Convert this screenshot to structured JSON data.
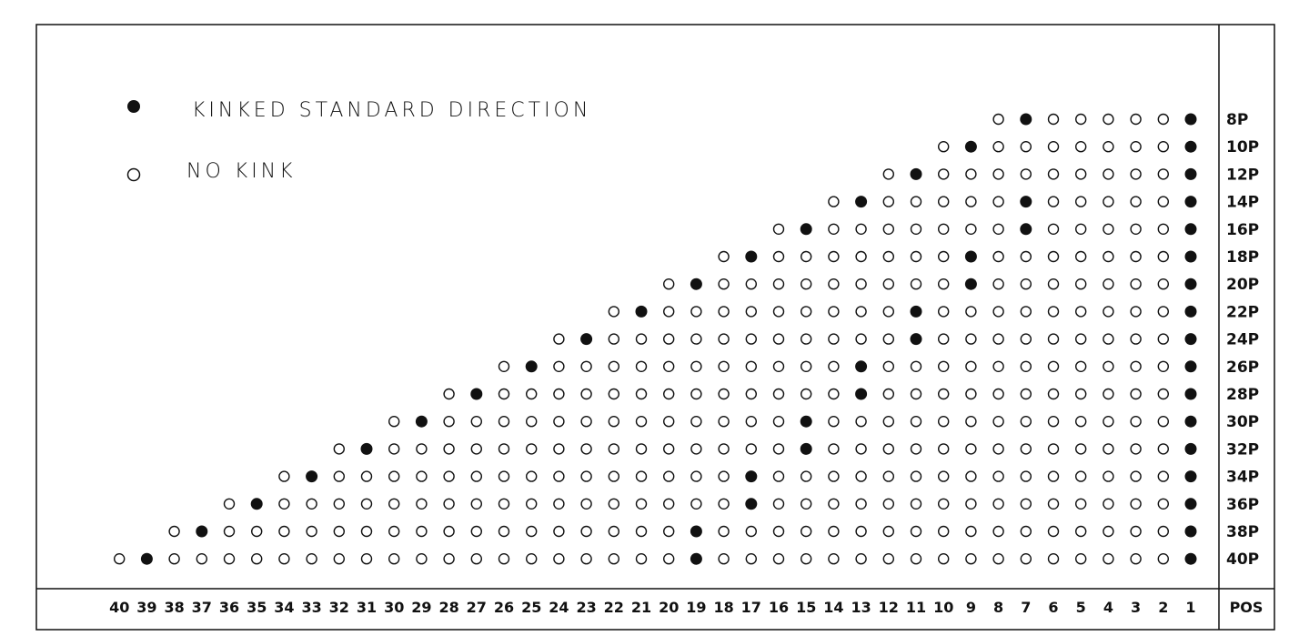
{
  "legend": {
    "kinked_label": "KINKED STANDARD DIRECTION",
    "no_kink_label": "NO KINK"
  },
  "pos_header": "POS",
  "positions": [
    40,
    39,
    38,
    37,
    36,
    35,
    34,
    33,
    32,
    31,
    30,
    29,
    28,
    27,
    26,
    25,
    24,
    23,
    22,
    21,
    20,
    19,
    18,
    17,
    16,
    15,
    14,
    13,
    12,
    11,
    10,
    9,
    8,
    7,
    6,
    5,
    4,
    3,
    2,
    1
  ],
  "rows": [
    {
      "label": "8P",
      "count": 8,
      "kinked": [
        1,
        7
      ]
    },
    {
      "label": "10P",
      "count": 10,
      "kinked": [
        1,
        9
      ]
    },
    {
      "label": "12P",
      "count": 12,
      "kinked": [
        1,
        11
      ]
    },
    {
      "label": "14P",
      "count": 14,
      "kinked": [
        1,
        7,
        13
      ]
    },
    {
      "label": "16P",
      "count": 16,
      "kinked": [
        1,
        7,
        15
      ]
    },
    {
      "label": "18P",
      "count": 18,
      "kinked": [
        1,
        9,
        17
      ]
    },
    {
      "label": "20P",
      "count": 20,
      "kinked": [
        1,
        9,
        19
      ]
    },
    {
      "label": "22P",
      "count": 22,
      "kinked": [
        1,
        11,
        21
      ]
    },
    {
      "label": "24P",
      "count": 24,
      "kinked": [
        1,
        11,
        23
      ]
    },
    {
      "label": "26P",
      "count": 26,
      "kinked": [
        1,
        13,
        25
      ]
    },
    {
      "label": "28P",
      "count": 28,
      "kinked": [
        1,
        13,
        27
      ]
    },
    {
      "label": "30P",
      "count": 30,
      "kinked": [
        1,
        15,
        29
      ]
    },
    {
      "label": "32P",
      "count": 32,
      "kinked": [
        1,
        15,
        31
      ]
    },
    {
      "label": "34P",
      "count": 34,
      "kinked": [
        1,
        17,
        33
      ]
    },
    {
      "label": "36P",
      "count": 36,
      "kinked": [
        1,
        17,
        35
      ]
    },
    {
      "label": "38P",
      "count": 38,
      "kinked": [
        1,
        19,
        37
      ]
    },
    {
      "label": "40P",
      "count": 40,
      "kinked": [
        1,
        19,
        39
      ]
    }
  ]
}
